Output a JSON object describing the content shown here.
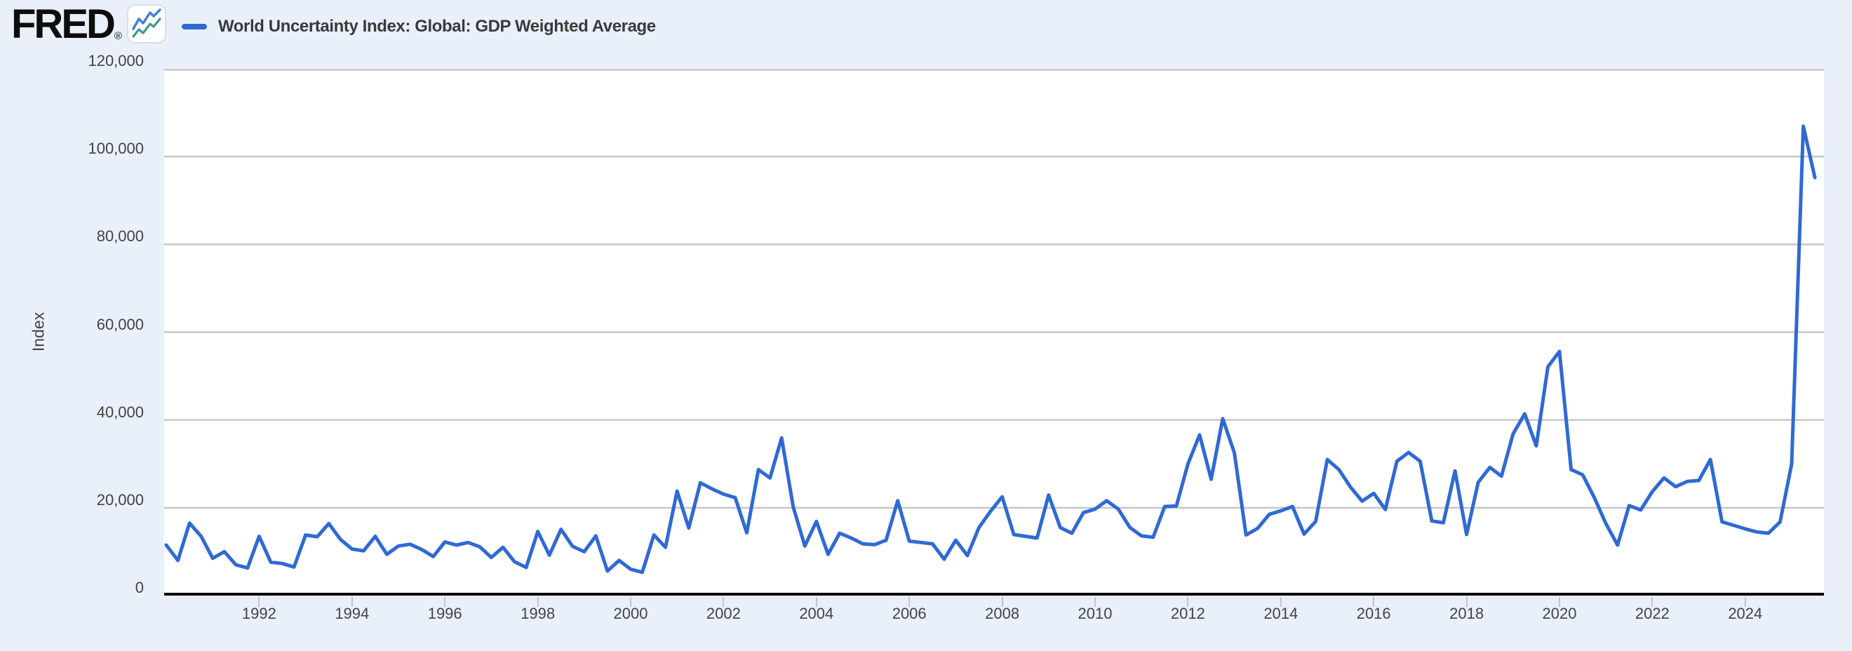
{
  "header": {
    "logo_text": "FRED",
    "registered_mark": "®",
    "legend_label": "World Uncertainty Index: Global: GDP Weighted Average"
  },
  "colors": {
    "background": "#e9f0fa",
    "plot_background": "#ffffff",
    "gridline": "#c6c6c6",
    "axis": "#000000",
    "line": "#3069d5",
    "tick_mark": "#b9c6dd",
    "label_text": "#434343",
    "legend_text": "#3a3a3a",
    "logo_icon_blue": "#4a7fd4",
    "logo_icon_teal": "#3d9b8f"
  },
  "y_axis": {
    "title": "Index",
    "tick_labels": [
      "120,000",
      "100,000",
      "80,000",
      "60,000",
      "40,000",
      "20,000",
      "0"
    ],
    "min": 0,
    "max": 120000
  },
  "x_axis": {
    "tick_labels": [
      "1992",
      "1994",
      "1996",
      "1998",
      "2000",
      "2002",
      "2004",
      "2006",
      "2008",
      "2010",
      "2012",
      "2014",
      "2016",
      "2018",
      "2020",
      "2022",
      "2024"
    ]
  },
  "chart_data": {
    "type": "line",
    "title": "World Uncertainty Index: Global: GDP Weighted Average",
    "xlabel": "",
    "ylabel": "Index",
    "ylim": [
      0,
      120000
    ],
    "grid": "horizontal",
    "legend_position": "top-left",
    "frequency": "Quarterly",
    "start_period": "1990 Q1",
    "end_period": "2025 Q3",
    "series_name": "World Uncertainty Index: Global: GDP Weighted Average",
    "values": [
      11500,
      8000,
      16500,
      13500,
      8500,
      10000,
      7000,
      6300,
      13500,
      7600,
      7300,
      6500,
      13800,
      13400,
      16400,
      12800,
      10600,
      10200,
      13500,
      9400,
      11300,
      11700,
      10500,
      8900,
      12200,
      11500,
      12100,
      11100,
      8700,
      11000,
      7700,
      6400,
      14600,
      9200,
      15100,
      11200,
      10000,
      13600,
      5600,
      8000,
      6000,
      5300,
      13800,
      11000,
      23800,
      15400,
      25700,
      24300,
      23100,
      22300,
      14300,
      28700,
      26800,
      35900,
      20200,
      11300,
      16900,
      9400,
      14200,
      13100,
      11800,
      11600,
      12600,
      21600,
      12400,
      12100,
      11800,
      8300,
      12600,
      9100,
      15500,
      19200,
      22500,
      13900,
      13500,
      13100,
      22900,
      15500,
      14200,
      18900,
      19700,
      21600,
      19700,
      15500,
      13600,
      13300,
      20300,
      20400,
      30000,
      36600,
      26500,
      40300,
      32500,
      13800,
      15300,
      18500,
      19300,
      20300,
      14000,
      16900,
      31000,
      28700,
      24700,
      21500,
      23300,
      19600,
      30600,
      32600,
      30600,
      17000,
      16600,
      28400,
      13900,
      25800,
      29200,
      27200,
      36800,
      41400,
      34100,
      52100,
      55600,
      28700,
      27500,
      22300,
      16400,
      11500,
      20500,
      19500,
      23700,
      26800,
      24800,
      26000,
      26200,
      31000,
      16800,
      16000,
      15200,
      14500,
      14200,
      16800,
      30000,
      106900,
      95200
    ]
  }
}
